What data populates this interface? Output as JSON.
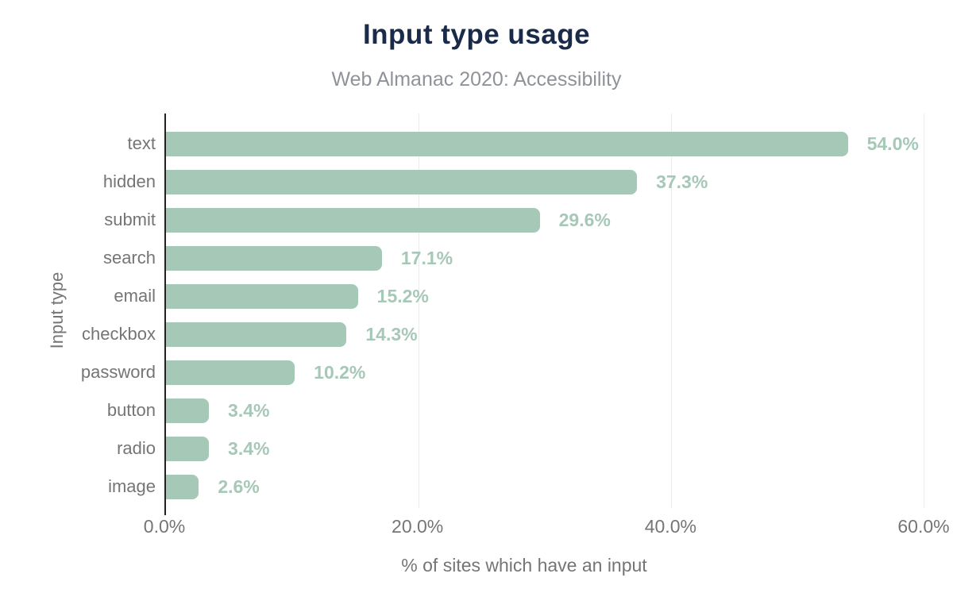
{
  "chart_data": {
    "type": "bar",
    "orientation": "horizontal",
    "title": "Input type usage",
    "subtitle": "Web Almanac 2020: Accessibility",
    "xlabel": "% of sites which have an input",
    "ylabel": "Input type",
    "xlim": [
      0,
      60
    ],
    "xticks": {
      "values": [
        0,
        20,
        40,
        60
      ],
      "labels": [
        "0.0%",
        "20.0%",
        "40.0%",
        "60.0%"
      ]
    },
    "grid": "vertical-gridlines-on",
    "legend": "none",
    "categories": [
      "text",
      "hidden",
      "submit",
      "search",
      "email",
      "checkbox",
      "password",
      "button",
      "radio",
      "image"
    ],
    "values": [
      54.0,
      37.3,
      29.6,
      17.1,
      15.2,
      14.3,
      10.2,
      3.4,
      3.4,
      2.6
    ],
    "value_labels": [
      "54.0%",
      "37.3%",
      "29.6%",
      "17.1%",
      "15.2%",
      "14.3%",
      "10.2%",
      "3.4%",
      "3.4%",
      "2.6%"
    ]
  },
  "colors": {
    "title": "#1a2b49",
    "subtitle": "#8f9399",
    "bar": "#a6c8b6",
    "value_label": "#a6c8b6",
    "category_label": "#757575",
    "tick_label": "#757575",
    "axis_line": "#212121",
    "gridline": "#ececec",
    "background": "#ffffff"
  }
}
